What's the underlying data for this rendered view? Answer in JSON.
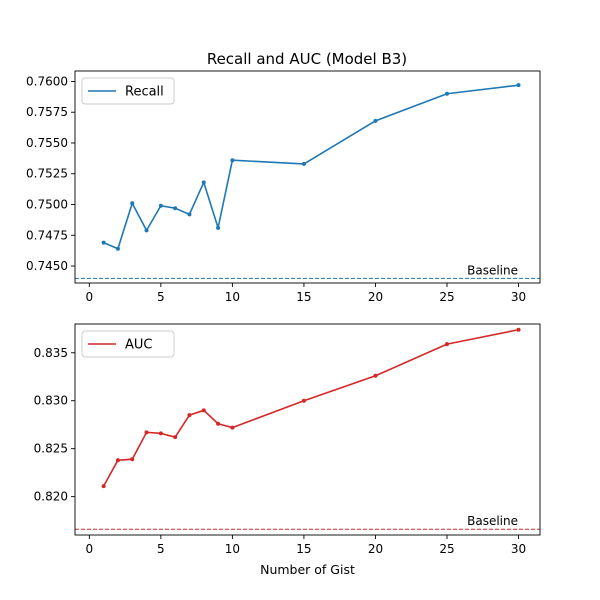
{
  "figure_title": "Recall and AUC (Model B3)",
  "chart_data": [
    {
      "type": "line",
      "title": "Recall and AUC (Model B3)",
      "xlabel": "",
      "ylabel": "",
      "xlim": [
        -1,
        31.5
      ],
      "ylim": [
        0.74362,
        0.76085
      ],
      "x_ticks": [
        0,
        5,
        10,
        15,
        20,
        25,
        30
      ],
      "y_ticks": [
        0.745,
        0.7475,
        0.75,
        0.7525,
        0.755,
        0.7575,
        0.76
      ],
      "y_tick_decimals": 4,
      "grid": false,
      "legend": "top-left",
      "color": "#1f77b4",
      "series": [
        {
          "name": "Recall",
          "x": [
            1,
            2,
            3,
            4,
            5,
            6,
            7,
            8,
            9,
            10,
            15,
            20,
            25,
            30
          ],
          "values": [
            0.7469,
            0.7464,
            0.7501,
            0.7479,
            0.7499,
            0.7497,
            0.7492,
            0.7518,
            0.7481,
            0.7536,
            0.7533,
            0.7568,
            0.759,
            0.7597
          ]
        }
      ],
      "baseline": {
        "value": 0.744,
        "label": "Baseline"
      }
    },
    {
      "type": "line",
      "title": "",
      "xlabel": "Number of Gist",
      "ylabel": "",
      "xlim": [
        -1,
        31.5
      ],
      "ylim": [
        0.816,
        0.838
      ],
      "x_ticks": [
        0,
        5,
        10,
        15,
        20,
        25,
        30
      ],
      "y_ticks": [
        0.82,
        0.825,
        0.83,
        0.835
      ],
      "y_tick_decimals": 3,
      "grid": false,
      "legend": "top-left",
      "color": "#d62728",
      "series": [
        {
          "name": "AUC",
          "x": [
            1,
            2,
            3,
            4,
            5,
            6,
            7,
            8,
            9,
            10,
            15,
            20,
            25,
            30
          ],
          "values": [
            0.8211,
            0.8238,
            0.8239,
            0.8267,
            0.8266,
            0.8262,
            0.8285,
            0.829,
            0.8276,
            0.8272,
            0.83,
            0.8326,
            0.8359,
            0.8374
          ]
        }
      ],
      "baseline": {
        "value": 0.8166,
        "label": "Baseline"
      }
    }
  ]
}
